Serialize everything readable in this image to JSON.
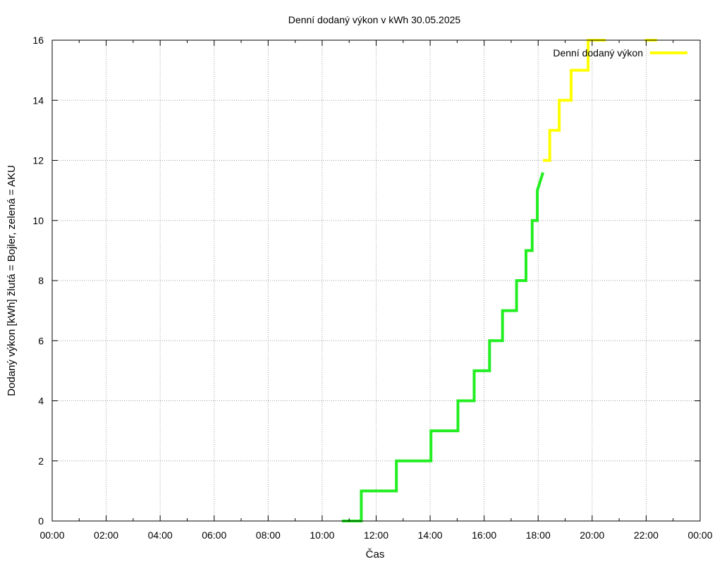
{
  "chart_data": {
    "type": "line",
    "title": "Denní dodaný výkon v kWh 30.05.2025",
    "xlabel": "Čas",
    "ylabel": "Dodaný výkon [kWh]  žlutá = Bojler, zelená = AKU",
    "xlim": [
      0,
      24
    ],
    "ylim": [
      0,
      16
    ],
    "x_ticks": [
      "00:00",
      "02:00",
      "04:00",
      "06:00",
      "08:00",
      "10:00",
      "12:00",
      "14:00",
      "16:00",
      "18:00",
      "20:00",
      "22:00",
      "00:00"
    ],
    "y_ticks": [
      0,
      2,
      4,
      6,
      8,
      10,
      12,
      14,
      16
    ],
    "grid": true,
    "legend_position": "top-right",
    "legend": [
      {
        "label": "Denní dodaný výkon",
        "color": "#ffff00"
      }
    ],
    "series": [
      {
        "name": "AKU",
        "color": "#22ee22",
        "x": [
          10.73,
          11.45,
          11.45,
          12.75,
          12.75,
          14.03,
          14.03,
          15.03,
          15.03,
          15.63,
          15.63,
          16.2,
          16.2,
          16.68,
          16.68,
          17.2,
          17.2,
          17.55,
          17.55,
          17.78,
          17.78,
          17.97,
          17.97,
          18.18
        ],
        "y": [
          0,
          0,
          1,
          1,
          2,
          2,
          3,
          3,
          4,
          4,
          5,
          5,
          6,
          6,
          7,
          7,
          8,
          8,
          9,
          9,
          10,
          10,
          11,
          11.6
        ]
      },
      {
        "name": "Bojler",
        "color": "#ffff00",
        "x": [
          18.18,
          18.43,
          18.43,
          18.78,
          18.78,
          19.22,
          19.22,
          19.85,
          19.85,
          20.5
        ],
        "y": [
          12,
          12,
          13,
          13,
          14,
          14,
          15,
          15,
          16,
          16
        ]
      },
      {
        "name": "Bojler",
        "color": "#ffff00",
        "x": [
          21.95,
          22.4
        ],
        "y": [
          16,
          16
        ]
      }
    ]
  }
}
